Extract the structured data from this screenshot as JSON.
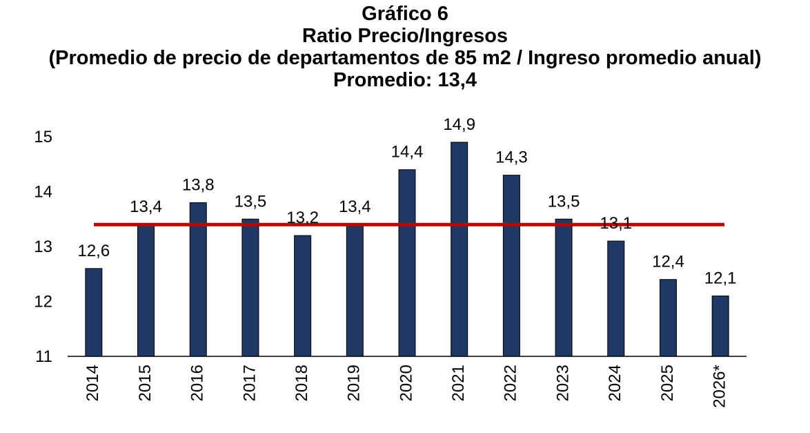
{
  "chart_data": {
    "type": "bar",
    "title_lines": [
      "Gráfico 6",
      "Ratio Precio/Ingresos",
      "(Promedio de precio de departamentos de 85 m2 / Ingreso promedio anual)",
      "Promedio: 13,4"
    ],
    "categories": [
      "2014",
      "2015",
      "2016",
      "2017",
      "2018",
      "2019",
      "2020",
      "2021",
      "2022",
      "2023",
      "2024",
      "2025",
      "2026*"
    ],
    "values": [
      12.6,
      13.4,
      13.8,
      13.5,
      13.2,
      13.4,
      14.4,
      14.9,
      14.3,
      13.5,
      13.1,
      12.4,
      12.1
    ],
    "data_labels": [
      "12,6",
      "13,4",
      "13,8",
      "13,5",
      "13,2",
      "13,4",
      "14,4",
      "14,9",
      "14,3",
      "13,5",
      "13,1",
      "12,4",
      "12,1"
    ],
    "yticks": [
      11,
      12,
      13,
      14,
      15
    ],
    "ylim": [
      11,
      15
    ],
    "average_line": 13.4,
    "colors": {
      "bar": "#1f3864",
      "average_line": "#c00000",
      "axis": "#000000"
    }
  }
}
